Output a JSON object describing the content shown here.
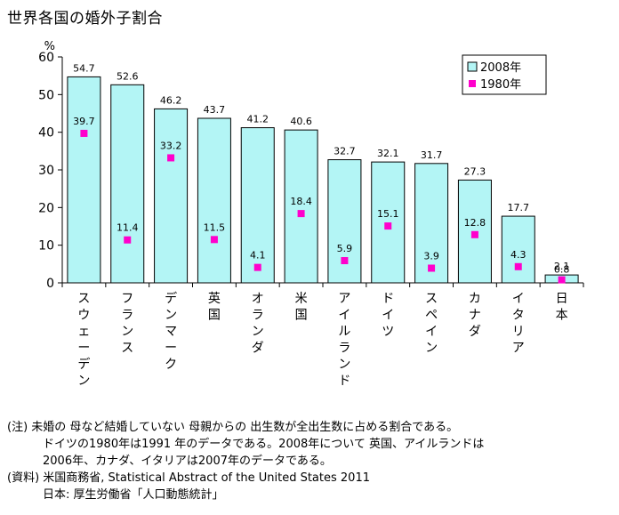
{
  "chart_data": {
    "type": "bar",
    "title": "世界各国の婚外子割合",
    "ylabel": "%",
    "ylim": [
      0,
      60
    ],
    "yticks": [
      0,
      10,
      20,
      30,
      40,
      50,
      60
    ],
    "grid": false,
    "legend_position": "top-right",
    "categories": [
      "スウェーデン",
      "フランス",
      "デンマーク",
      "英国",
      "オランダ",
      "米国",
      "アイルランド",
      "ドイツ",
      "スペイン",
      "カナダ",
      "イタリア",
      "日本"
    ],
    "series": [
      {
        "name": "2008年",
        "kind": "bar",
        "color": "#b3f5f5",
        "values": [
          54.7,
          52.6,
          46.2,
          43.7,
          41.2,
          40.6,
          32.7,
          32.1,
          31.7,
          27.3,
          17.7,
          2.1
        ]
      },
      {
        "name": "1980年",
        "kind": "marker",
        "color": "#ff00cc",
        "values": [
          39.7,
          11.4,
          33.2,
          11.5,
          4.1,
          18.4,
          5.9,
          15.1,
          3.9,
          12.8,
          4.3,
          0.8
        ]
      }
    ]
  },
  "notes": [
    "(注) 未婚の 母など結婚していない 母親からの 出生数が全出生数に占める割合である。",
    "ドイツの1980年は1991 年のデータである。2008年について 英国、アイルランドは",
    "2006年、カナダ、イタリアは2007年のデータである。",
    "(資料) 米国商務省, Statistical Abstract of the United States 2011",
    "日本: 厚生労働省「人口動態統計」"
  ]
}
